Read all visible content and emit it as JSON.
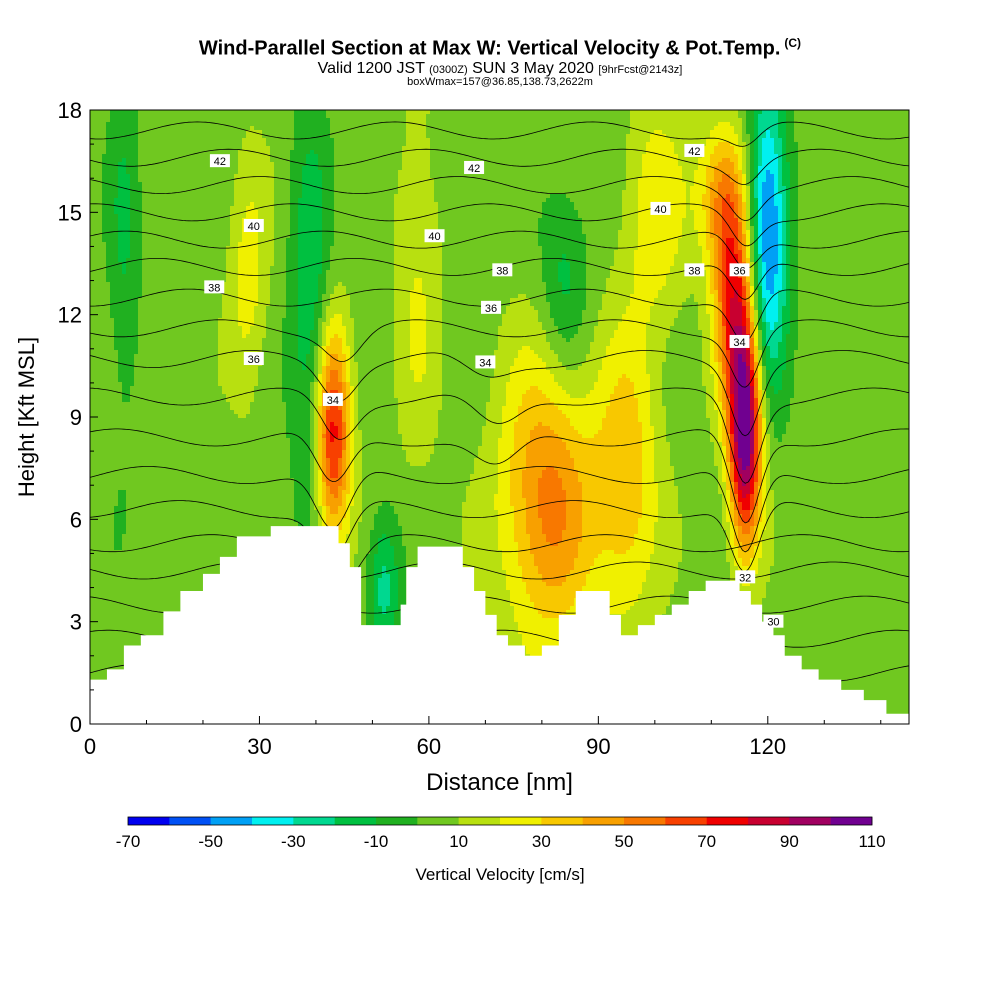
{
  "title": {
    "main": "Wind-Parallel Section at Max W: Vertical Velocity & Pot.Temp.",
    "copyright": "(C)",
    "valid_prefix": "Valid 1200 JST",
    "valid_utc": "(0300Z)",
    "valid_date": "SUN 3 May 2020",
    "forecast": "[9hrFcst@2143z]",
    "box": "boxWmax=157@36.85,138.73,2622m"
  },
  "chart_data": {
    "type": "heatmap",
    "xlabel": "Distance [nm]",
    "ylabel": "Height [Kft MSL]",
    "xlim": [
      0,
      145
    ],
    "ylim": [
      0,
      18
    ],
    "x_ticks": [
      0,
      30,
      60,
      90,
      120
    ],
    "y_ticks": [
      0,
      3,
      6,
      9,
      12,
      15,
      18
    ],
    "colorbar": {
      "label": "Vertical Velocity [cm/s]",
      "tick_labels": [
        "-70",
        "-50",
        "-30",
        "-10",
        "10",
        "30",
        "50",
        "70",
        "90",
        "110"
      ],
      "bins": [
        -70,
        -60,
        -50,
        -40,
        -30,
        -20,
        -10,
        0,
        10,
        20,
        30,
        40,
        50,
        60,
        70,
        80,
        90,
        100,
        110
      ],
      "colors": [
        "#0000f0",
        "#0050f5",
        "#00a0f5",
        "#00f0f0",
        "#00d890",
        "#00c040",
        "#20b020",
        "#70c820",
        "#b8e010",
        "#f0f000",
        "#f8c800",
        "#f8a000",
        "#f87800",
        "#f84000",
        "#f00000",
        "#c80030",
        "#a00060",
        "#700090"
      ]
    },
    "terrain_kft": [
      [
        0,
        1.3
      ],
      [
        3,
        1.6
      ],
      [
        6,
        2.3
      ],
      [
        9,
        2.6
      ],
      [
        13,
        3.3
      ],
      [
        16,
        3.9
      ],
      [
        20,
        4.4
      ],
      [
        23,
        4.9
      ],
      [
        26,
        5.5
      ],
      [
        32,
        5.8
      ],
      [
        40,
        5.8
      ],
      [
        44,
        5.3
      ],
      [
        46,
        4.6
      ],
      [
        48,
        2.9
      ],
      [
        51,
        2.9
      ],
      [
        55,
        3.5
      ],
      [
        56,
        4.6
      ],
      [
        58,
        5.2
      ],
      [
        63,
        5.2
      ],
      [
        66,
        4.6
      ],
      [
        68,
        3.9
      ],
      [
        70,
        3.2
      ],
      [
        72,
        2.6
      ],
      [
        74,
        2.3
      ],
      [
        77,
        2.0
      ],
      [
        80,
        2.3
      ],
      [
        83,
        3.2
      ],
      [
        86,
        3.9
      ],
      [
        92,
        3.2
      ],
      [
        94,
        2.6
      ],
      [
        97,
        2.9
      ],
      [
        100,
        3.2
      ],
      [
        103,
        3.5
      ],
      [
        106,
        3.9
      ],
      [
        109,
        4.2
      ],
      [
        113,
        4.2
      ],
      [
        115,
        3.9
      ],
      [
        117,
        3.5
      ],
      [
        119,
        3.0
      ],
      [
        121,
        2.6
      ],
      [
        123,
        2.0
      ],
      [
        126,
        1.6
      ],
      [
        129,
        1.3
      ],
      [
        133,
        1.0
      ],
      [
        137,
        0.7
      ],
      [
        141,
        0.3
      ],
      [
        145,
        0.3
      ]
    ],
    "w_features": [
      {
        "x": 43,
        "y": 8.5,
        "sx": 2.2,
        "sy": 2.2,
        "amp": 70
      },
      {
        "x": 39,
        "y": 12.0,
        "sx": 2.5,
        "sy": 4.0,
        "amp": -25
      },
      {
        "x": 52,
        "y": 4.0,
        "sx": 2.0,
        "sy": 1.5,
        "amp": -30
      },
      {
        "x": 58,
        "y": 13.0,
        "sx": 3.0,
        "sy": 4.0,
        "amp": 15
      },
      {
        "x": 81,
        "y": 6.5,
        "sx": 6.0,
        "sy": 3.0,
        "amp": 48
      },
      {
        "x": 95,
        "y": 7.0,
        "sx": 4.0,
        "sy": 3.0,
        "amp": 32
      },
      {
        "x": 84,
        "y": 13.0,
        "sx": 3.0,
        "sy": 2.0,
        "amp": -20
      },
      {
        "x": 116,
        "y": 8.5,
        "sx": 2.0,
        "sy": 2.3,
        "amp": 105
      },
      {
        "x": 114,
        "y": 12.5,
        "sx": 2.5,
        "sy": 2.2,
        "amp": 60
      },
      {
        "x": 112,
        "y": 15.5,
        "sx": 3.0,
        "sy": 1.5,
        "amp": 40
      },
      {
        "x": 120,
        "y": 14.5,
        "sx": 2.5,
        "sy": 3.0,
        "amp": -60
      },
      {
        "x": 6,
        "y": 14.0,
        "sx": 2.0,
        "sy": 4.0,
        "amp": -15
      },
      {
        "x": 28,
        "y": 13.0,
        "sx": 2.5,
        "sy": 2.5,
        "amp": 20
      },
      {
        "x": 100,
        "y": 15.0,
        "sx": 4.0,
        "sy": 2.5,
        "amp": 22
      }
    ],
    "theta_labels": [
      {
        "value": "42",
        "x": 23,
        "y": 16.5
      },
      {
        "value": "42",
        "x": 68,
        "y": 16.3
      },
      {
        "value": "42",
        "x": 107,
        "y": 16.8
      },
      {
        "value": "40",
        "x": 29,
        "y": 14.6
      },
      {
        "value": "40",
        "x": 61,
        "y": 14.3
      },
      {
        "value": "40",
        "x": 101,
        "y": 15.1
      },
      {
        "value": "38",
        "x": 22,
        "y": 12.8
      },
      {
        "value": "38",
        "x": 73,
        "y": 13.3
      },
      {
        "value": "38",
        "x": 107,
        "y": 13.3
      },
      {
        "value": "36",
        "x": 29,
        "y": 10.7
      },
      {
        "value": "36",
        "x": 71,
        "y": 12.2
      },
      {
        "value": "36",
        "x": 115,
        "y": 13.3
      },
      {
        "value": "34",
        "x": 43,
        "y": 9.5
      },
      {
        "value": "34",
        "x": 70,
        "y": 10.6
      },
      {
        "value": "34",
        "x": 115,
        "y": 11.2
      },
      {
        "value": "32",
        "x": 116,
        "y": 4.3
      },
      {
        "value": "30",
        "x": 121,
        "y": 3.0
      }
    ],
    "theta_lines": [
      {
        "base": 1.5,
        "dips": []
      },
      {
        "base": 2.5,
        "dips": []
      },
      {
        "base": 3.5,
        "dips": []
      },
      {
        "base": 4.5,
        "dips": []
      },
      {
        "base": 5.3,
        "dips": [
          [
            45,
            -1.0,
            3
          ]
        ]
      },
      {
        "base": 6.3,
        "dips": [
          [
            43,
            -1.5,
            3
          ],
          [
            116,
            -2.0,
            2.5
          ]
        ]
      },
      {
        "base": 7.3,
        "dips": [
          [
            43,
            -1.8,
            3
          ],
          [
            116,
            -2.5,
            2.5
          ]
        ]
      },
      {
        "base": 8.4,
        "dips": [
          [
            43,
            -1.5,
            3
          ],
          [
            72,
            -1.0,
            4
          ],
          [
            116,
            -2.6,
            2.5
          ]
        ]
      },
      {
        "base": 9.6,
        "dips": [
          [
            44,
            -1.2,
            3
          ],
          [
            72,
            -1.0,
            4
          ],
          [
            116,
            -2.4,
            2.5
          ]
        ]
      },
      {
        "base": 10.7,
        "dips": [
          [
            44,
            -1.0,
            3
          ],
          [
            70,
            -0.6,
            4
          ],
          [
            116,
            -2.0,
            2.5
          ]
        ]
      },
      {
        "base": 11.6,
        "dips": [
          [
            45,
            -0.8,
            3
          ],
          [
            116,
            -1.6,
            2.5
          ]
        ]
      },
      {
        "base": 12.5,
        "dips": [
          [
            116,
            -1.4,
            2.5
          ]
        ]
      },
      {
        "base": 13.4,
        "dips": [
          [
            116,
            -1.2,
            2.5
          ]
        ]
      },
      {
        "base": 14.2,
        "dips": [
          [
            116,
            -1.0,
            2.5
          ]
        ]
      },
      {
        "base": 15.0,
        "dips": [
          [
            116,
            -0.9,
            2.5
          ]
        ]
      },
      {
        "base": 15.8,
        "dips": [
          [
            116,
            -0.8,
            2.5
          ]
        ]
      },
      {
        "base": 16.6,
        "dips": [
          [
            116,
            -0.6,
            2.5
          ]
        ]
      },
      {
        "base": 17.4,
        "dips": [
          [
            116,
            -0.5,
            2.5
          ]
        ]
      }
    ]
  }
}
